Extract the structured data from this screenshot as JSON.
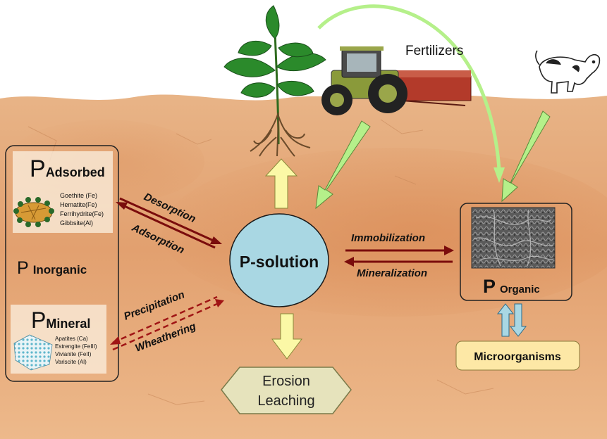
{
  "labels": {
    "fertilizers": "Fertilizers",
    "p_solution": "P-solution",
    "p_adsorbed_p": "P",
    "p_adsorbed_word": "Adsorbed",
    "p_inorganic_p": "P",
    "p_inorganic_word": "Inorganic",
    "p_mineral_p": "P",
    "p_mineral_word": "Mineral",
    "p_organic_p": "P",
    "p_organic_word": "Organic",
    "microorganisms": "Microorganisms",
    "erosion": "Erosion",
    "leaching": "Leaching"
  },
  "process_labels": {
    "desorption": "Desorption",
    "adsorption": "Adsorption",
    "precipitation": "Precipitation",
    "weathering": "Wheathering",
    "immobilization": "Immobilization",
    "mineralization": "Mineralization"
  },
  "adsorbed_minerals": [
    "Goethite (Fe)",
    "Hematite(Fe)",
    "Ferrihydrite(Fe)",
    "Gibbsite(Al)"
  ],
  "mineral_list": [
    "Apatites  (Ca)",
    "Estrengite (FeIII)",
    "Vivianite (FeII)",
    "Variscite (Al)"
  ],
  "colors": {
    "soil_light": "#e6ad7c",
    "soil_dark": "#d48655",
    "solution_fill": "#a9d7e3",
    "dark_red_arrow": "#7a0c0c",
    "green_arrow": "#b5f08a",
    "yellow_arrow": "#fbf8a6",
    "micro_box": "#fde8a6"
  }
}
